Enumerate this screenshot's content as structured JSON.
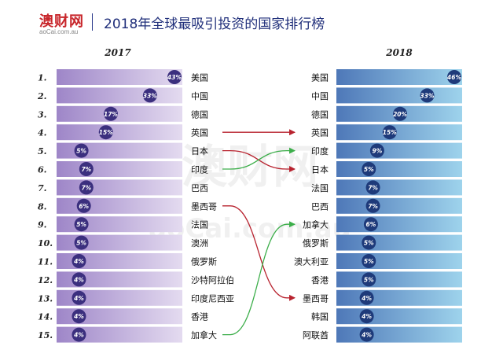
{
  "header": {
    "logo_text": "澳财网",
    "logo_sub": "aoCai.com.au",
    "title": "2018年全球最吸引投资的国家排行榜"
  },
  "watermark": {
    "main": "澳财网",
    "sub": "aoCai.com.au"
  },
  "colors": {
    "left_bar_dark": "#9e86c8",
    "left_bar_light": "#e4dbf0",
    "right_bar_dark": "#4e78b8",
    "right_bar_light": "#9ed3ec",
    "badge_left": "#3b2f7e",
    "badge_right": "#1e3a7a",
    "arrow_up": "#3cae4a",
    "arrow_down": "#b8232f"
  },
  "chart_data": [
    {
      "type": "bar",
      "title": "2017",
      "ranks": [
        "1.",
        "2.",
        "3.",
        "4.",
        "5.",
        "6.",
        "7.",
        "8.",
        "9.",
        "10.",
        "11.",
        "12.",
        "13.",
        "14.",
        "15."
      ],
      "categories": [
        "美国",
        "中国",
        "德国",
        "英国",
        "日本",
        "印度",
        "巴西",
        "墨西哥",
        "法国",
        "澳洲",
        "俄罗斯",
        "沙特阿拉伯",
        "印度尼西亚",
        "香港",
        "加拿大"
      ],
      "values": [
        43,
        33,
        17,
        15,
        5,
        7,
        7,
        6,
        5,
        5,
        4,
        4,
        4,
        4,
        4
      ],
      "labels": [
        "43%",
        "33%",
        "17%",
        "15%",
        "5%",
        "7%",
        "7%",
        "6%",
        "5%",
        "5%",
        "4%",
        "4%",
        "4%",
        "4%",
        "4%"
      ]
    },
    {
      "type": "bar",
      "title": "2018",
      "categories": [
        "美国",
        "中国",
        "德国",
        "英国",
        "印度",
        "日本",
        "法国",
        "巴西",
        "加拿大",
        "俄罗斯",
        "澳大利亚",
        "香港",
        "墨西哥",
        "韩国",
        "阿联酋"
      ],
      "values": [
        46,
        33,
        20,
        15,
        9,
        5,
        7,
        7,
        6,
        5,
        5,
        5,
        4,
        4,
        4
      ],
      "labels": [
        "46%",
        "33%",
        "20%",
        "15%",
        "9%",
        "5%",
        "7%",
        "7%",
        "6%",
        "5%",
        "5%",
        "5%",
        "4%",
        "4%",
        "4%"
      ]
    }
  ],
  "connections": [
    {
      "from_rank": 4,
      "to_rank": 4,
      "color": "arrow_down"
    },
    {
      "from_rank": 5,
      "to_rank": 6,
      "color": "arrow_down"
    },
    {
      "from_rank": 6,
      "to_rank": 5,
      "color": "arrow_up"
    },
    {
      "from_rank": 8,
      "to_rank": 13,
      "color": "arrow_down"
    },
    {
      "from_rank": 15,
      "to_rank": 9,
      "color": "arrow_up"
    }
  ]
}
